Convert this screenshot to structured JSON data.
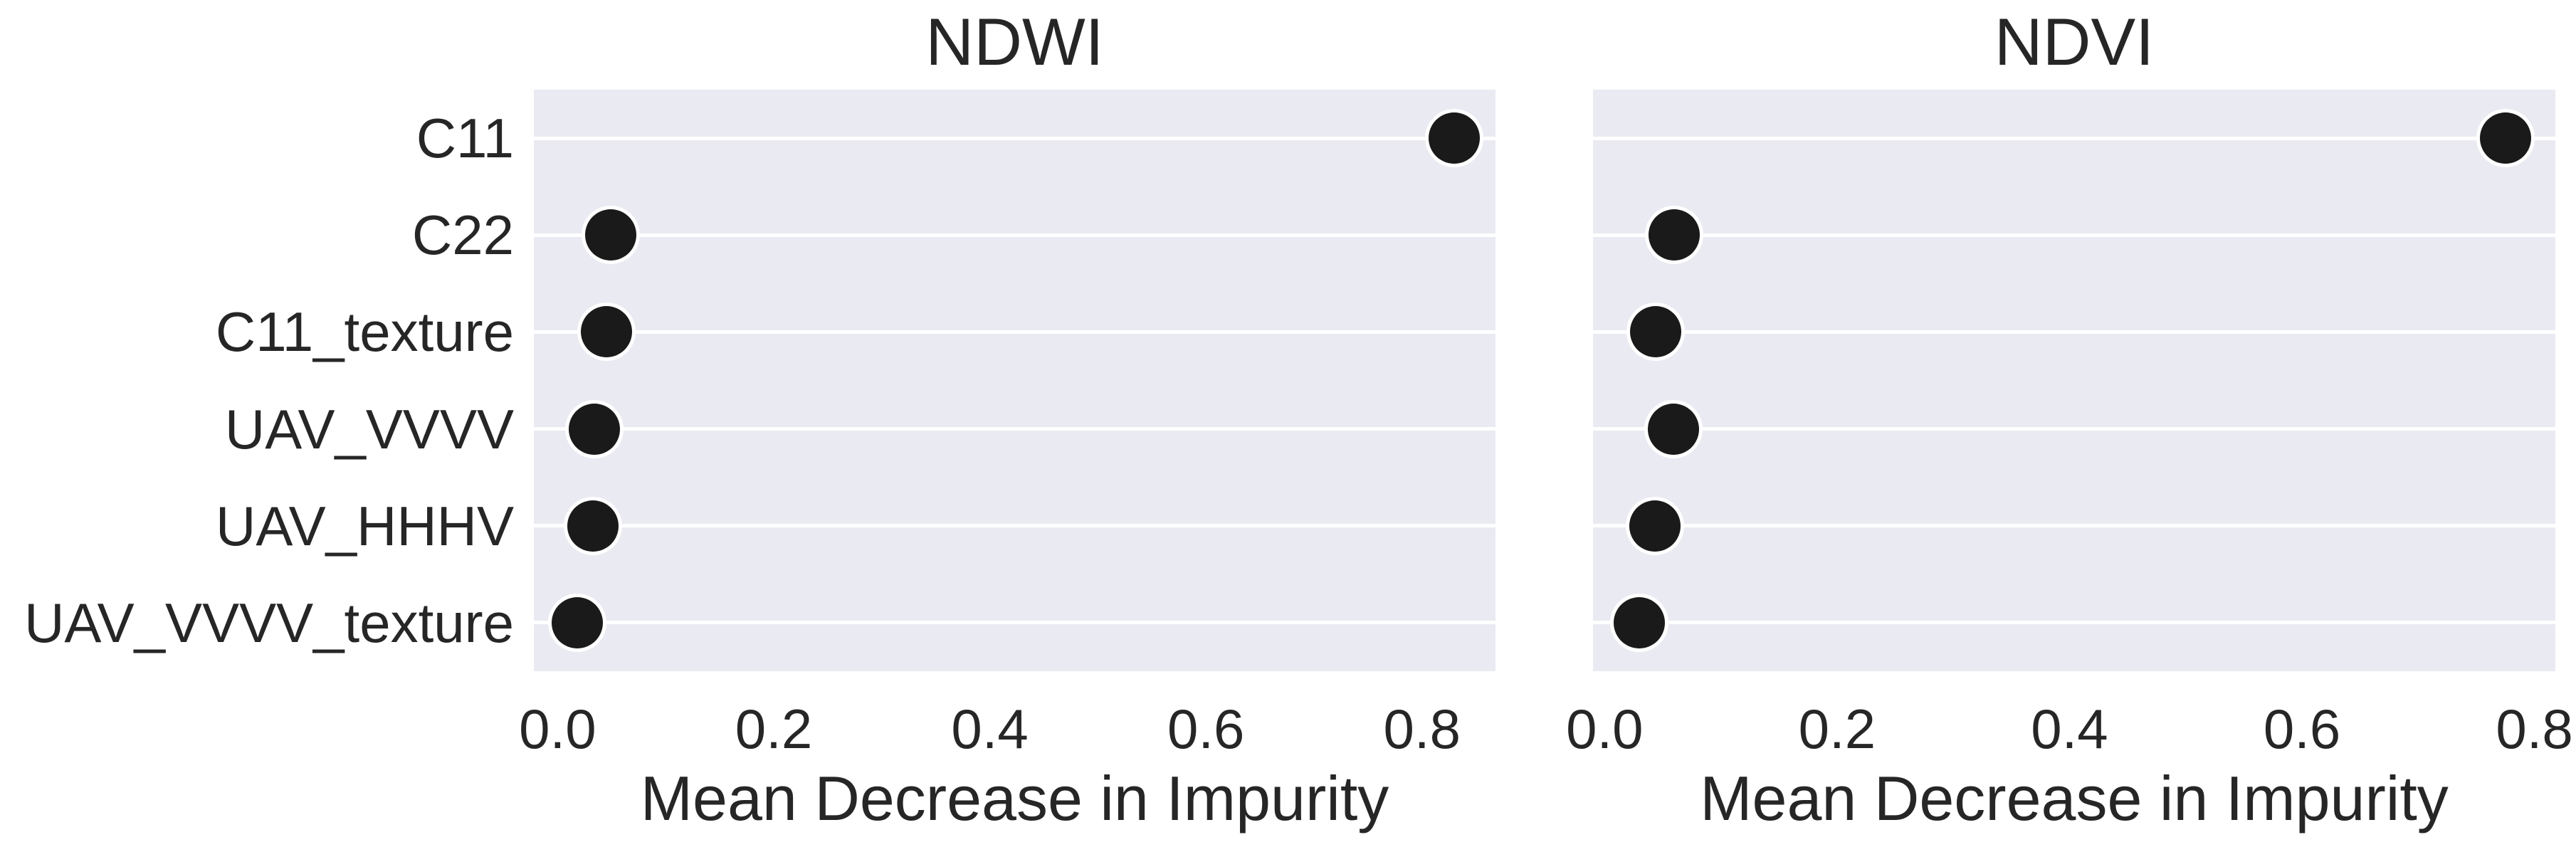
{
  "figure": {
    "background": "#ffffff",
    "plot_background": "#eaeaf2",
    "gridline_color": "#ffffff",
    "marker_color": "#1a1a1a",
    "marker_edge_color": "#ffffff",
    "text_color": "#262626"
  },
  "chart_data": [
    {
      "type": "scatter",
      "orientation": "horizontal",
      "title": "NDWI",
      "xlabel": "Mean Decrease in Impurity",
      "categories": [
        "C11",
        "C22",
        "C11_texture",
        "UAV_VVVV",
        "UAV_HHHV",
        "UAV_VVVV_texture"
      ],
      "values": [
        0.83,
        0.049,
        0.045,
        0.034,
        0.033,
        0.018
      ],
      "x_tick_labels": [
        "0.0",
        "0.2",
        "0.4",
        "0.6",
        "0.8"
      ],
      "x_tick_values": [
        0.0,
        0.2,
        0.4,
        0.6,
        0.8
      ],
      "xlim": [
        -0.022,
        0.868
      ],
      "grid": "horizontal-only",
      "legend": "none"
    },
    {
      "type": "scatter",
      "orientation": "horizontal",
      "title": "NDVI",
      "xlabel": "Mean Decrease in Impurity",
      "categories": [
        "C11",
        "C22",
        "C11_texture",
        "UAV_VVVV",
        "UAV_HHHV",
        "UAV_VVVV_texture"
      ],
      "values": [
        0.775,
        0.06,
        0.044,
        0.059,
        0.043,
        0.03
      ],
      "x_tick_labels": [
        "0.0",
        "0.2",
        "0.4",
        "0.6",
        "0.8"
      ],
      "x_tick_values": [
        0.0,
        0.2,
        0.4,
        0.6,
        0.8
      ],
      "xlim": [
        -0.01,
        0.818
      ],
      "grid": "horizontal-only",
      "legend": "none"
    }
  ]
}
